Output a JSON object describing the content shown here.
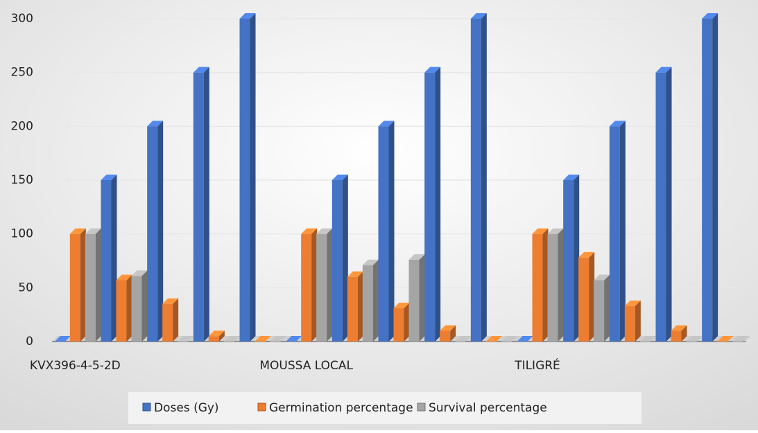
{
  "chart_data": {
    "type": "bar3d",
    "categories": [
      "KVX396-4-5-2D",
      null,
      null,
      null,
      null,
      "MOUSSA LOCAL",
      null,
      null,
      null,
      null,
      "TILIGRÉ",
      null,
      null,
      null,
      null
    ],
    "series": [
      {
        "name": "Doses (Gy)",
        "color": "#4472c4",
        "values": [
          0,
          150,
          200,
          250,
          300,
          0,
          150,
          200,
          250,
          300,
          0,
          150,
          200,
          250,
          300
        ]
      },
      {
        "name": "Germination percentage",
        "color": "#ed7d31",
        "values": [
          100,
          57,
          35,
          5,
          0,
          100,
          60,
          31,
          10,
          0,
          100,
          78,
          33,
          10,
          0
        ]
      },
      {
        "name": "Survival percentage",
        "color": "#a5a5a5",
        "values": [
          100,
          61,
          0,
          0,
          0,
          100,
          71,
          76,
          0,
          0,
          100,
          57,
          0,
          0,
          0
        ]
      }
    ],
    "ylim": [
      0,
      300
    ],
    "yticks": [
      0,
      50,
      100,
      150,
      200,
      250,
      300
    ],
    "grid": true,
    "legend": "bottom"
  }
}
